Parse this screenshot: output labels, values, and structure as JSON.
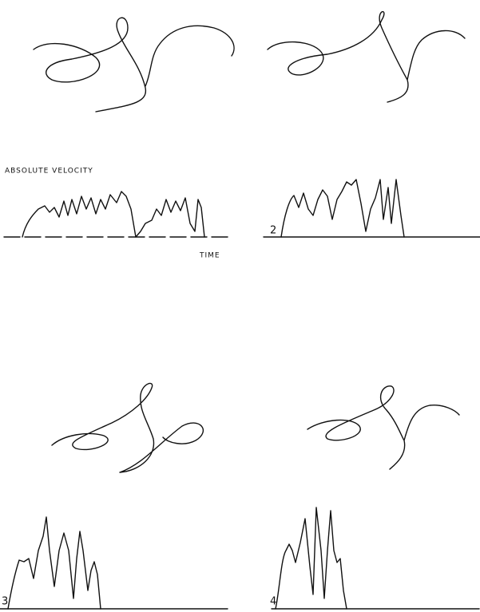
{
  "figure": {
    "y_label": "ABSOLUTE VELOCITY",
    "x_label": "TIME",
    "panel_labels": [
      "2",
      "3",
      "4"
    ]
  }
}
